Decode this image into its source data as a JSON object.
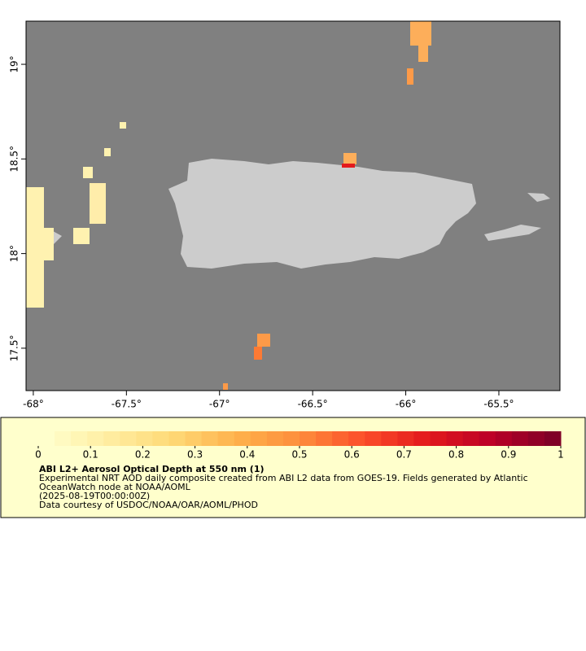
{
  "map": {
    "xlim": [
      -68.039,
      -65.172
    ],
    "ylim": [
      17.276,
      19.228
    ],
    "xticks": [
      {
        "value": -68,
        "label": "-68°"
      },
      {
        "value": -67.5,
        "label": "-67.5°"
      },
      {
        "value": -67,
        "label": "-67°"
      },
      {
        "value": -66.5,
        "label": "-66.5°"
      },
      {
        "value": -66,
        "label": "-66°"
      },
      {
        "value": -65.5,
        "label": "-65.5°"
      }
    ],
    "yticks": [
      {
        "value": 19,
        "label": "19°"
      },
      {
        "value": 18.5,
        "label": "18.5°"
      },
      {
        "value": 18,
        "label": "18°"
      },
      {
        "value": 17.5,
        "label": "17.5°"
      }
    ]
  },
  "colorbar": {
    "lim": [
      0,
      1
    ],
    "ticks": [
      0,
      0.1,
      0.2,
      0.3,
      0.4,
      0.5,
      0.6,
      0.7,
      0.8,
      0.9,
      1
    ],
    "colors": [
      "#ffffcc",
      "#ffeda0",
      "#fed976",
      "#feb24c",
      "#fd8d3c",
      "#fc4e2a",
      "#e31a1c",
      "#bd0026",
      "#800026"
    ]
  },
  "legend": {
    "title": "ABI L2+ Aerosol Optical Depth at 550 nm (1)",
    "lines": [
      "Experimental NRT AOD daily composite created from ABI L2 data from GOES-19. Fields generated by Atlantic",
      "OceanWatch node at NOAA/AOML",
      "(2025-08-19T00:00:00Z)",
      "Data courtesy of USDOC/NOAA/OAR/AOML/PHOD"
    ]
  }
}
